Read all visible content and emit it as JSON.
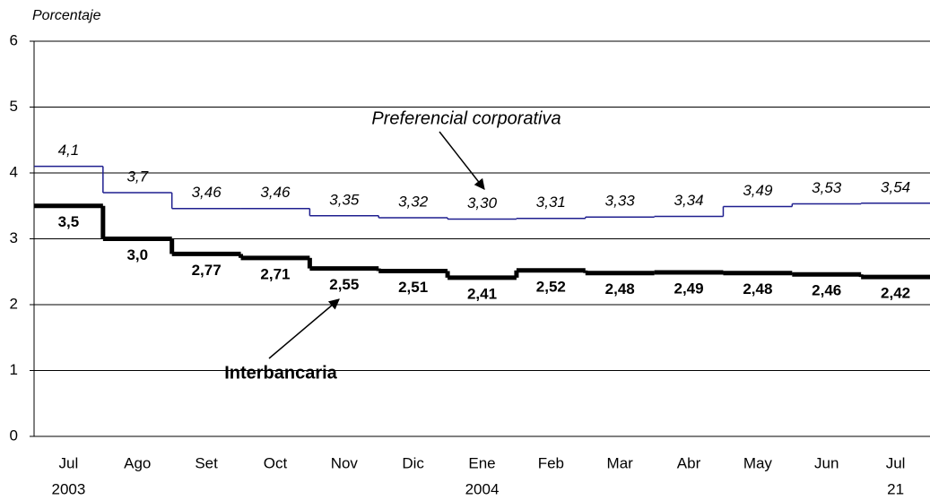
{
  "chart_data": {
    "type": "step",
    "y_label": "Porcentaje",
    "categories": [
      "Jul",
      "Ago",
      "Set",
      "Oct",
      "Nov",
      "Dic",
      "Ene",
      "Feb",
      "Mar",
      "Abr",
      "May",
      "Jun",
      "Jul"
    ],
    "category_sublabels": [
      "2003",
      null,
      null,
      null,
      null,
      null,
      "2004",
      null,
      null,
      null,
      null,
      null,
      "21"
    ],
    "ylim": [
      0,
      6
    ],
    "yticks": [
      0,
      1,
      2,
      3,
      4,
      5,
      6
    ],
    "grid": true,
    "series": [
      {
        "name": "Preferencial corporativa",
        "color": "#1f1f8f",
        "values": [
          4.1,
          3.7,
          3.46,
          3.46,
          3.35,
          3.32,
          3.3,
          3.31,
          3.33,
          3.34,
          3.49,
          3.53,
          3.54
        ],
        "value_labels": [
          "4,1",
          "3,7",
          "3,46",
          "3,46",
          "3,35",
          "3,32",
          "3,30",
          "3,31",
          "3,33",
          "3,34",
          "3,49",
          "3,53",
          "3,54"
        ]
      },
      {
        "name": "Interbancaria",
        "color": "#000000",
        "values": [
          3.5,
          3.0,
          2.77,
          2.71,
          2.55,
          2.51,
          2.41,
          2.52,
          2.48,
          2.49,
          2.48,
          2.46,
          2.42
        ],
        "value_labels": [
          "3,5",
          "3,0",
          "2,77",
          "2,71",
          "2,55",
          "2,51",
          "2,41",
          "2,52",
          "2,48",
          "2,49",
          "2,48",
          "2,46",
          "2,42"
        ]
      }
    ]
  }
}
